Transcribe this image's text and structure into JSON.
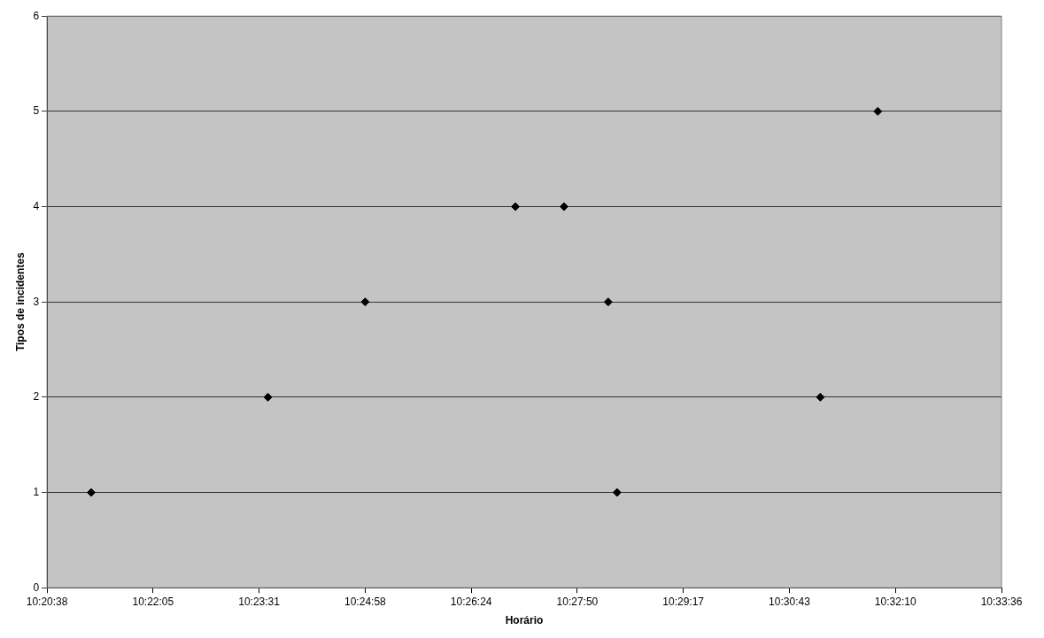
{
  "chart_data": {
    "type": "scatter",
    "xlabel": "Horário",
    "ylabel": "Tipos de incidentes",
    "x": [
      10.354,
      10.394,
      10.416,
      10.45,
      10.461,
      10.471,
      10.473,
      10.519,
      10.532
    ],
    "series": [
      {
        "color": "#000000",
        "values": [
          1,
          2,
          3,
          4,
          4,
          3,
          1,
          2,
          5
        ]
      }
    ],
    "xlim": [
      10.344,
      10.56
    ],
    "xticks": [
      {
        "value": 10.344,
        "label": "10:20:38"
      },
      {
        "value": 10.368,
        "label": "10:22:05"
      },
      {
        "value": 10.392,
        "label": "10:23:31"
      },
      {
        "value": 10.416,
        "label": "10:24:58"
      },
      {
        "value": 10.44,
        "label": "10:26:24"
      },
      {
        "value": 10.464,
        "label": "10:27:50"
      },
      {
        "value": 10.488,
        "label": "10:29:17"
      },
      {
        "value": 10.512,
        "label": "10:30:43"
      },
      {
        "value": 10.536,
        "label": "10:32:10"
      },
      {
        "value": 10.56,
        "label": "10:33:36"
      }
    ],
    "ylim": [
      0,
      6
    ],
    "yticks": [
      0,
      1,
      2,
      3,
      4,
      5,
      6
    ],
    "grid": "y",
    "marker": "diamond",
    "legend": false
  }
}
